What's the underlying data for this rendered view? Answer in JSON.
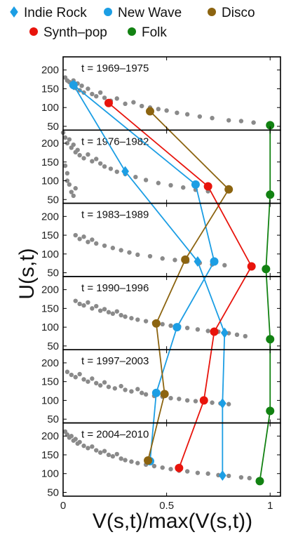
{
  "chart_data": {
    "type": "scatter",
    "xlabel": "V(s,t)/max(V(s,t))",
    "ylabel": "U(s,t)",
    "xlim": [
      0,
      1.05
    ],
    "ylim": [
      40,
      235
    ],
    "x_ticks": [
      0,
      0.5,
      1
    ],
    "x_tick_labels": [
      "0",
      "0.5",
      "1"
    ],
    "y_ticks": [
      50,
      100,
      150,
      200
    ],
    "y_tick_labels": [
      "50",
      "100",
      "150",
      "200"
    ],
    "grid": false,
    "legend_position": "top",
    "legend": [
      {
        "name": "Indie Rock",
        "color": "#1c9ee4",
        "marker": "diamond"
      },
      {
        "name": "New Wave",
        "color": "#1c9ee4",
        "marker": "circle"
      },
      {
        "name": "Disco",
        "color": "#8c6410",
        "marker": "circle"
      },
      {
        "name": "Synth–pop",
        "color": "#e8140c",
        "marker": "circle"
      },
      {
        "name": "Folk",
        "color": "#128212",
        "marker": "circle"
      }
    ],
    "background_color": "#8a8a8a",
    "panels": [
      {
        "title": "t = 1969–1975",
        "background": [
          [
            0.01,
            180
          ],
          [
            0.02,
            172
          ],
          [
            0.03,
            168
          ],
          [
            0.04,
            160
          ],
          [
            0.05,
            172
          ],
          [
            0.06,
            152
          ],
          [
            0.07,
            164
          ],
          [
            0.08,
            146
          ],
          [
            0.09,
            158
          ],
          [
            0.1,
            140
          ],
          [
            0.12,
            150
          ],
          [
            0.14,
            136
          ],
          [
            0.16,
            130
          ],
          [
            0.18,
            140
          ],
          [
            0.2,
            126
          ],
          [
            0.23,
            118
          ],
          [
            0.26,
            124
          ],
          [
            0.3,
            110
          ],
          [
            0.34,
            114
          ],
          [
            0.38,
            104
          ],
          [
            0.42,
            100
          ],
          [
            0.46,
            96
          ],
          [
            0.5,
            92
          ],
          [
            0.55,
            86
          ],
          [
            0.6,
            82
          ],
          [
            0.66,
            76
          ],
          [
            0.72,
            72
          ],
          [
            0.8,
            66
          ],
          [
            0.86,
            64
          ],
          [
            0.92,
            60
          ]
        ]
      },
      {
        "title": "t = 1976–1982",
        "background": [
          [
            0.0,
            228
          ],
          [
            0.01,
            215
          ],
          [
            0.02,
            200
          ],
          [
            0.03,
            210
          ],
          [
            0.04,
            188
          ],
          [
            0.05,
            196
          ],
          [
            0.06,
            176
          ],
          [
            0.07,
            182
          ],
          [
            0.08,
            168
          ],
          [
            0.1,
            160
          ],
          [
            0.12,
            170
          ],
          [
            0.14,
            152
          ],
          [
            0.16,
            158
          ],
          [
            0.18,
            146
          ],
          [
            0.2,
            138
          ],
          [
            0.23,
            132
          ],
          [
            0.26,
            124
          ],
          [
            0.3,
            118
          ],
          [
            0.35,
            110
          ],
          [
            0.4,
            102
          ],
          [
            0.46,
            94
          ],
          [
            0.52,
            88
          ],
          [
            0.58,
            82
          ],
          [
            0.64,
            76
          ],
          [
            0.7,
            72
          ],
          [
            0.01,
            140
          ],
          [
            0.02,
            120
          ],
          [
            0.03,
            90
          ],
          [
            0.04,
            70
          ],
          [
            0.05,
            60
          ],
          [
            0.02,
            100
          ],
          [
            0.06,
            80
          ]
        ]
      },
      {
        "title": "t = 1983–1989",
        "background": [
          [
            0.06,
            150
          ],
          [
            0.08,
            140
          ],
          [
            0.1,
            146
          ],
          [
            0.12,
            132
          ],
          [
            0.14,
            138
          ],
          [
            0.16,
            128
          ],
          [
            0.2,
            122
          ],
          [
            0.24,
            116
          ],
          [
            0.28,
            110
          ],
          [
            0.32,
            104
          ],
          [
            0.36,
            98
          ],
          [
            0.42,
            94
          ],
          [
            0.48,
            88
          ],
          [
            0.54,
            84
          ],
          [
            0.6,
            80
          ],
          [
            0.66,
            76
          ],
          [
            0.72,
            72
          ],
          [
            0.78,
            70
          ]
        ]
      },
      {
        "title": "t = 1990–1996",
        "background": [
          [
            0.06,
            170
          ],
          [
            0.08,
            162
          ],
          [
            0.1,
            158
          ],
          [
            0.12,
            166
          ],
          [
            0.14,
            150
          ],
          [
            0.16,
            156
          ],
          [
            0.18,
            144
          ],
          [
            0.2,
            148
          ],
          [
            0.22,
            140
          ],
          [
            0.24,
            136
          ],
          [
            0.26,
            142
          ],
          [
            0.28,
            132
          ],
          [
            0.3,
            128
          ],
          [
            0.33,
            124
          ],
          [
            0.36,
            120
          ],
          [
            0.4,
            116
          ],
          [
            0.44,
            112
          ],
          [
            0.48,
            108
          ],
          [
            0.52,
            104
          ],
          [
            0.56,
            102
          ],
          [
            0.6,
            98
          ],
          [
            0.65,
            94
          ],
          [
            0.7,
            90
          ],
          [
            0.75,
            88
          ],
          [
            0.8,
            84
          ],
          [
            0.84,
            80
          ],
          [
            0.88,
            76
          ]
        ]
      },
      {
        "title": "t = 1997–2003",
        "background": [
          [
            0.02,
            176
          ],
          [
            0.04,
            168
          ],
          [
            0.06,
            162
          ],
          [
            0.08,
            170
          ],
          [
            0.1,
            156
          ],
          [
            0.12,
            150
          ],
          [
            0.14,
            158
          ],
          [
            0.16,
            146
          ],
          [
            0.18,
            140
          ],
          [
            0.2,
            148
          ],
          [
            0.22,
            136
          ],
          [
            0.25,
            132
          ],
          [
            0.28,
            138
          ],
          [
            0.3,
            128
          ],
          [
            0.33,
            124
          ],
          [
            0.36,
            130
          ],
          [
            0.38,
            120
          ],
          [
            0.4,
            116
          ],
          [
            0.44,
            112
          ],
          [
            0.48,
            110
          ],
          [
            0.52,
            106
          ],
          [
            0.56,
            104
          ],
          [
            0.6,
            100
          ],
          [
            0.64,
            98
          ],
          [
            0.68,
            96
          ],
          [
            0.72,
            94
          ],
          [
            0.76,
            92
          ],
          [
            0.8,
            90
          ]
        ]
      },
      {
        "title": "t = 2004–2010",
        "background": [
          [
            0.01,
            212
          ],
          [
            0.02,
            204
          ],
          [
            0.03,
            196
          ],
          [
            0.04,
            200
          ],
          [
            0.05,
            188
          ],
          [
            0.06,
            192
          ],
          [
            0.07,
            180
          ],
          [
            0.08,
            184
          ],
          [
            0.1,
            174
          ],
          [
            0.12,
            168
          ],
          [
            0.14,
            172
          ],
          [
            0.16,
            162
          ],
          [
            0.18,
            156
          ],
          [
            0.2,
            160
          ],
          [
            0.22,
            150
          ],
          [
            0.24,
            146
          ],
          [
            0.26,
            152
          ],
          [
            0.28,
            140
          ],
          [
            0.3,
            136
          ],
          [
            0.33,
            132
          ],
          [
            0.36,
            128
          ],
          [
            0.4,
            124
          ],
          [
            0.44,
            120
          ],
          [
            0.48,
            116
          ],
          [
            0.52,
            112
          ],
          [
            0.56,
            108
          ],
          [
            0.6,
            106
          ],
          [
            0.65,
            102
          ],
          [
            0.7,
            100
          ],
          [
            0.75,
            96
          ],
          [
            0.8,
            94
          ],
          [
            0.86,
            90
          ],
          [
            0.9,
            88
          ],
          [
            0.95,
            84
          ]
        ]
      }
    ],
    "series": [
      {
        "name": "Indie Rock",
        "color": "#1c9ee4",
        "marker": "diamond",
        "values": [
          [
            0.05,
            160
          ],
          [
            0.3,
            125
          ],
          [
            0.65,
            80
          ],
          [
            0.78,
            85
          ],
          [
            0.77,
            92
          ],
          [
            0.77,
            95
          ]
        ]
      },
      {
        "name": "New Wave",
        "color": "#1c9ee4",
        "marker": "circle",
        "values": [
          [
            0.05,
            160
          ],
          [
            0.64,
            90
          ],
          [
            0.73,
            80
          ],
          [
            0.55,
            100
          ],
          [
            0.45,
            120
          ],
          [
            0.42,
            133
          ]
        ]
      },
      {
        "name": "Disco",
        "color": "#8c6410",
        "marker": "circle",
        "values": [
          [
            0.42,
            90
          ],
          [
            0.8,
            77
          ],
          [
            0.59,
            85
          ],
          [
            0.45,
            110
          ],
          [
            0.49,
            117
          ],
          [
            0.41,
            135
          ]
        ]
      },
      {
        "name": "Synth–pop",
        "color": "#e8140c",
        "marker": "circle",
        "values": [
          [
            0.22,
            112
          ],
          [
            0.7,
            85
          ],
          [
            0.91,
            67
          ],
          [
            0.73,
            88
          ],
          [
            0.68,
            100
          ],
          [
            0.56,
            115
          ]
        ]
      },
      {
        "name": "Folk",
        "color": "#128212",
        "marker": "circle",
        "values": [
          [
            1.0,
            53
          ],
          [
            1.0,
            63
          ],
          [
            0.98,
            60
          ],
          [
            1.0,
            68
          ],
          [
            1.0,
            72
          ],
          [
            0.95,
            80
          ]
        ]
      }
    ]
  }
}
